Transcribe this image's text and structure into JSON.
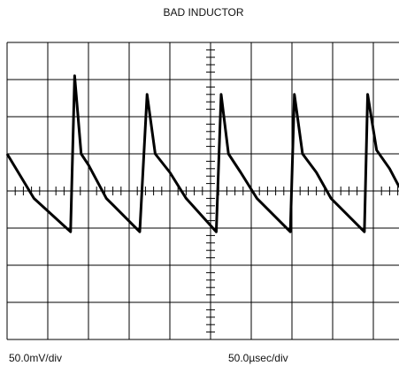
{
  "chart_data": {
    "type": "line",
    "title": "BAD INDUCTOR",
    "y_scale": "50.0mV/div",
    "x_scale": "50.0µsec/div",
    "x": [
      0,
      33,
      78,
      83,
      91,
      100,
      122,
      163,
      172,
      182,
      200,
      220,
      257,
      263,
      272,
      287,
      307,
      348,
      353,
      363,
      380,
      398,
      439,
      443,
      454,
      470,
      482
    ],
    "series": [
      {
        "color": "#000000",
        "values": [
          50,
          -10,
          -55,
          155,
          50,
          35,
          -10,
          -55,
          130,
          50,
          25,
          -10,
          -55,
          130,
          50,
          25,
          -10,
          -55,
          130,
          50,
          25,
          -10,
          -55,
          130,
          55,
          30,
          5
        ]
      }
    ],
    "xlim": [
      0,
      500
    ],
    "ylim": [
      -200,
      200
    ],
    "xticks": [
      0,
      50,
      100,
      150,
      200,
      250,
      300,
      350,
      400,
      450,
      500
    ],
    "yticks": [
      -200,
      -150,
      -100,
      -50,
      0,
      50,
      100,
      150,
      200
    ],
    "grid": true
  }
}
